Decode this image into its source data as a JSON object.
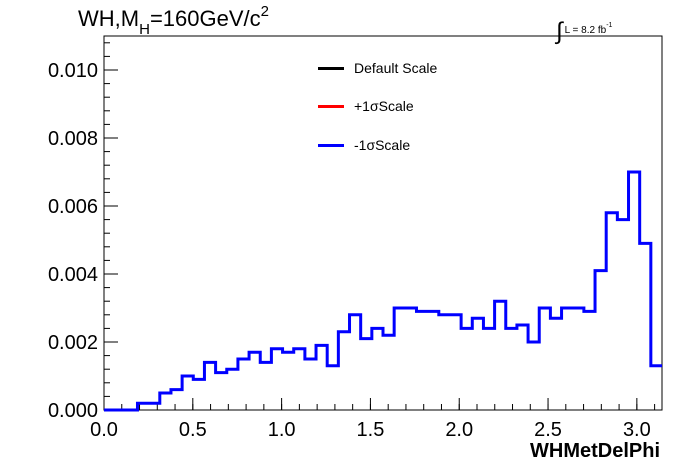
{
  "title": {
    "prefix": "WH,M",
    "subscript": "H",
    "value": "=160GeV/c",
    "superscript": "2"
  },
  "lumi": {
    "integral": "∫",
    "text": "L = 8.2 fb",
    "superscript": "-1"
  },
  "chart_data": {
    "type": "line",
    "xlabel": "WHMetDelPhi",
    "ylabel": "",
    "xlim": [
      0.0,
      3.1416
    ],
    "ylim": [
      0.0,
      0.011
    ],
    "x_ticks": [
      "0.0",
      "0.5",
      "1.0",
      "1.5",
      "2.0",
      "2.5",
      "3.0"
    ],
    "y_ticks": [
      "0.000",
      "0.002",
      "0.004",
      "0.006",
      "0.008",
      "0.010"
    ],
    "bin_width": 0.0628,
    "legend": [
      {
        "name": "Default Scale",
        "color": "#000000"
      },
      {
        "name": "+1σScale",
        "color": "#ff0000"
      },
      {
        "name": "-1σScale",
        "color": "#0000ff"
      }
    ],
    "series": [
      {
        "name": "-1σScale",
        "color": "#0000ff",
        "values": [
          0.0,
          0.0,
          0.0,
          0.0002,
          0.0002,
          0.0005,
          0.0006,
          0.001,
          0.0009,
          0.0014,
          0.0011,
          0.0012,
          0.0015,
          0.0017,
          0.0014,
          0.0018,
          0.0017,
          0.0018,
          0.0015,
          0.0019,
          0.0013,
          0.0023,
          0.0028,
          0.0021,
          0.0024,
          0.0022,
          0.003,
          0.003,
          0.0029,
          0.0029,
          0.0028,
          0.0028,
          0.0024,
          0.0027,
          0.0024,
          0.0032,
          0.0024,
          0.0025,
          0.002,
          0.003,
          0.0027,
          0.003,
          0.003,
          0.0029,
          0.0041,
          0.0058,
          0.0056,
          0.007,
          0.0049,
          0.0013
        ]
      }
    ]
  }
}
